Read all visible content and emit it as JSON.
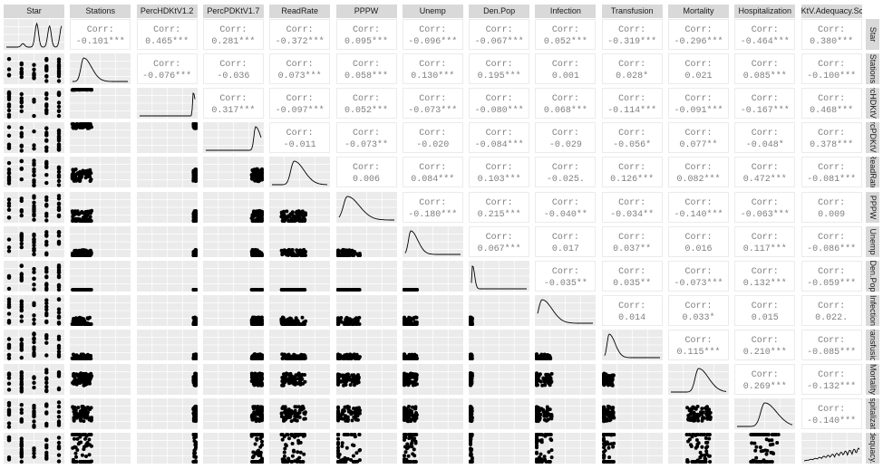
{
  "chart_data": {
    "type": "pairs",
    "title": "",
    "variables": [
      "Star",
      "Stations",
      "PercHDKtV1.2",
      "PercPDKtV1.7",
      "ReadRate",
      "PPPW",
      "Unemp",
      "Den.Pop",
      "Infection",
      "Transfusion",
      "Mortality",
      "Hospitalization",
      "KtV.Adequacy.Score"
    ],
    "corr_label": "Corr:",
    "upper_panel": "correlation",
    "diag_panel": "density",
    "lower_panel": "scatter",
    "correlations": [
      [
        null,
        "-0.101***",
        "0.465***",
        "0.281***",
        "-0.372***",
        "0.095***",
        "-0.096***",
        "-0.067***",
        "0.052***",
        "-0.319***",
        "-0.296***",
        "-0.464***",
        "0.380***"
      ],
      [
        null,
        null,
        "-0.076***",
        "-0.036",
        "0.073***",
        "0.058***",
        "0.130***",
        "0.195***",
        "0.001",
        "0.028*",
        "0.021",
        "0.085***",
        "-0.100***"
      ],
      [
        null,
        null,
        null,
        "0.317***",
        "-0.097***",
        "0.052***",
        "-0.073***",
        "-0.080***",
        "0.068***",
        "-0.114***",
        "-0.091***",
        "-0.167***",
        "0.468***"
      ],
      [
        null,
        null,
        null,
        null,
        "-0.011",
        "-0.073**",
        "-0.020",
        "-0.084***",
        "-0.029",
        "-0.056*",
        "0.077**",
        "-0.048*",
        "0.378***"
      ],
      [
        null,
        null,
        null,
        null,
        null,
        "0.006",
        "0.084***",
        "0.103***",
        "-0.025.",
        "0.126***",
        "0.082***",
        "0.472***",
        "-0.081***"
      ],
      [
        null,
        null,
        null,
        null,
        null,
        null,
        "-0.180***",
        "0.215***",
        "-0.040**",
        "-0.034**",
        "-0.140***",
        "-0.063***",
        "0.009"
      ],
      [
        null,
        null,
        null,
        null,
        null,
        null,
        null,
        "0.067***",
        "0.017",
        "0.037**",
        "0.016",
        "0.117***",
        "-0.086***"
      ],
      [
        null,
        null,
        null,
        null,
        null,
        null,
        null,
        null,
        "-0.035**",
        "0.035**",
        "-0.073***",
        "0.132***",
        "-0.059***"
      ],
      [
        null,
        null,
        null,
        null,
        null,
        null,
        null,
        null,
        null,
        "0.014",
        "0.033*",
        "0.015",
        "0.022."
      ],
      [
        null,
        null,
        null,
        null,
        null,
        null,
        null,
        null,
        null,
        null,
        "0.115***",
        "0.210***",
        "-0.085***"
      ],
      [
        null,
        null,
        null,
        null,
        null,
        null,
        null,
        null,
        null,
        null,
        null,
        "0.269***",
        "-0.132***"
      ],
      [
        null,
        null,
        null,
        null,
        null,
        null,
        null,
        null,
        null,
        null,
        null,
        null,
        "-0.140***"
      ],
      [
        null,
        null,
        null,
        null,
        null,
        null,
        null,
        null,
        null,
        null,
        null,
        null,
        null
      ]
    ],
    "colors": {
      "strip": "#d9d9d9",
      "panel_bg": "#ebebeb",
      "grid": "#ffffff",
      "text": "#7f7f7f",
      "points": "#000000"
    }
  }
}
